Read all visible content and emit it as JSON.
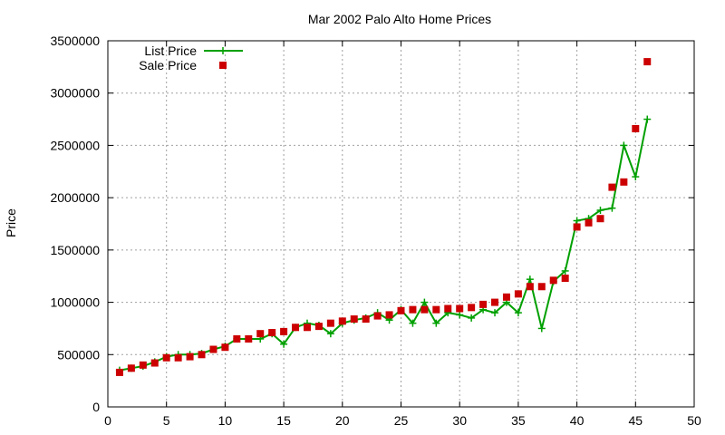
{
  "chart_data": {
    "type": "line",
    "title": "Mar 2002 Palo Alto Home Prices",
    "xlabel": "",
    "ylabel": "Price",
    "xlim": [
      0,
      50
    ],
    "ylim": [
      0,
      3500000
    ],
    "xticks": [
      0,
      5,
      10,
      15,
      20,
      25,
      30,
      35,
      40,
      45,
      50
    ],
    "yticks": [
      0,
      500000,
      1000000,
      1500000,
      2000000,
      2500000,
      3000000,
      3500000
    ],
    "grid": true,
    "legend": "top-left",
    "series": [
      {
        "name": "List Price",
        "style": "line+plus",
        "color": "#00a000",
        "x": [
          1,
          2,
          3,
          4,
          5,
          6,
          7,
          8,
          9,
          10,
          11,
          12,
          13,
          14,
          15,
          16,
          17,
          18,
          19,
          20,
          21,
          22,
          23,
          24,
          25,
          26,
          27,
          28,
          29,
          30,
          31,
          32,
          33,
          34,
          35,
          36,
          37,
          38,
          39,
          40,
          41,
          42,
          43,
          44,
          45,
          46
        ],
        "y": [
          350000,
          370000,
          390000,
          430000,
          480000,
          500000,
          500000,
          510000,
          550000,
          580000,
          650000,
          650000,
          650000,
          700000,
          600000,
          760000,
          800000,
          780000,
          700000,
          800000,
          830000,
          850000,
          900000,
          830000,
          930000,
          800000,
          1000000,
          800000,
          900000,
          880000,
          850000,
          930000,
          900000,
          1000000,
          900000,
          1220000,
          750000,
          1200000,
          1300000,
          1780000,
          1800000,
          1880000,
          1900000,
          2500000,
          2200000,
          2750000
        ]
      },
      {
        "name": "Sale Price",
        "style": "square",
        "color": "#cc0000",
        "x": [
          1,
          2,
          3,
          4,
          5,
          6,
          7,
          8,
          9,
          10,
          11,
          12,
          13,
          14,
          15,
          16,
          17,
          18,
          19,
          20,
          21,
          22,
          23,
          24,
          25,
          26,
          27,
          28,
          29,
          30,
          31,
          32,
          33,
          34,
          35,
          36,
          37,
          38,
          39,
          40,
          41,
          42,
          43,
          44,
          45,
          46
        ],
        "y": [
          330000,
          370000,
          400000,
          420000,
          470000,
          470000,
          480000,
          500000,
          550000,
          570000,
          650000,
          650000,
          700000,
          710000,
          720000,
          760000,
          760000,
          770000,
          800000,
          820000,
          840000,
          840000,
          870000,
          880000,
          920000,
          930000,
          930000,
          930000,
          940000,
          940000,
          950000,
          980000,
          1000000,
          1050000,
          1080000,
          1150000,
          1150000,
          1210000,
          1230000,
          1720000,
          1760000,
          1800000,
          2100000,
          2150000,
          2660000,
          3300000
        ]
      }
    ]
  }
}
